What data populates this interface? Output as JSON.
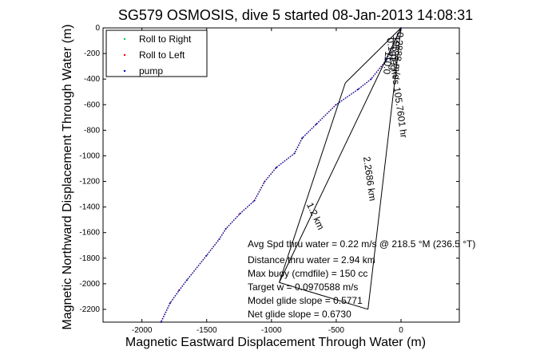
{
  "chart_data": {
    "type": "line",
    "title": "SG579 OSMOSIS, dive 5 started 08-Jan-2013 14:08:31",
    "xlabel": "Magnetic Eastward Displacement Through Water (m)",
    "ylabel": "Magnetic Northward Displacement Through Water (m)",
    "xlim": [
      -2300,
      450
    ],
    "ylim": [
      -2300,
      0
    ],
    "xticks": [
      -2000,
      -1500,
      -1000,
      -500,
      0
    ],
    "yticks": [
      0,
      -200,
      -400,
      -600,
      -800,
      -1000,
      -1200,
      -1400,
      -1600,
      -1800,
      -2000,
      -2200
    ],
    "grid": false,
    "legend_position": "top-left",
    "series": [
      {
        "name": "Roll to Right",
        "color": "#00cc66",
        "marker": "dot",
        "x": [
          0,
          -40,
          -110,
          -230,
          -330,
          -500,
          -650,
          -760,
          -820,
          -960,
          -1050,
          -1130,
          -1240,
          -1350,
          -1400,
          -1500,
          -1650,
          -1710,
          -1780,
          -1850
        ],
        "y": [
          0,
          -90,
          -250,
          -400,
          -480,
          -600,
          -750,
          -860,
          -980,
          -1090,
          -1200,
          -1350,
          -1450,
          -1570,
          -1650,
          -1780,
          -1970,
          -2050,
          -2150,
          -2300
        ]
      },
      {
        "name": "Roll to Left",
        "color": "#ff0000",
        "marker": "dot",
        "x": [
          0,
          -45,
          -115,
          -235,
          -335,
          -505,
          -655,
          -765,
          -825,
          -965,
          -1055,
          -1135,
          -1245,
          -1355,
          -1405,
          -1505,
          -1655,
          -1715,
          -1785,
          -1855
        ],
        "y": [
          0,
          -92,
          -252,
          -402,
          -482,
          -602,
          -752,
          -862,
          -982,
          -1092,
          -1202,
          -1352,
          -1452,
          -1572,
          -1652,
          -1782,
          -1972,
          -2052,
          -2152,
          -2300
        ]
      },
      {
        "name": "pump",
        "color": "#0000cc",
        "marker": "dot",
        "x": [
          0,
          -42,
          -112,
          -232,
          -332,
          -502,
          -652,
          -762,
          -822,
          -962,
          -1052,
          -1132,
          -1242,
          -1352,
          -1402,
          -1502,
          -1652,
          -1712,
          -1782,
          -1852
        ],
        "y": [
          0,
          -91,
          -251,
          -401,
          -481,
          -601,
          -751,
          -861,
          -981,
          -1091,
          -1201,
          -1351,
          -1451,
          -1571,
          -1651,
          -1781,
          -1971,
          -2051,
          -2151,
          -2300
        ]
      }
    ],
    "rays": [
      {
        "x": [
          0,
          -940
        ],
        "y": [
          0,
          -1990
        ]
      },
      {
        "x": [
          0,
          -255
        ],
        "y": [
          0,
          -2200
        ]
      },
      {
        "x": [
          0,
          -430
        ],
        "y": [
          0,
          -430
        ]
      }
    ],
    "ray_labels": [
      {
        "text": "0.2888 m/s",
        "x": -30,
        "y": -30,
        "angle": 95
      },
      {
        "text": "195 deg",
        "x": -60,
        "y": -60,
        "angle": 95
      },
      {
        "text": "0.1617 m/s 105.7601 hr",
        "x": -110,
        "y": -80,
        "angle": 82
      },
      {
        "text": "2.2686 km",
        "x": -290,
        "y": -1010,
        "angle": 82
      },
      {
        "text": "110.0",
        "x": -120,
        "y": -180,
        "angle": 95
      },
      {
        "text": "1.2 km",
        "x": -730,
        "y": -1380,
        "angle": 65
      }
    ],
    "annotations": [
      "Avg Spd thru water = 0.22 m/s @ 218.5   °M (236.5 °T)",
      "Distance thru water = 2.94 km",
      "Max buoy (cmdfile) = 150 cc",
      "Target w = 0.0970588 m/s",
      "Model glide slope = 0.5771",
      "Net glide slope = 0.6730"
    ]
  }
}
